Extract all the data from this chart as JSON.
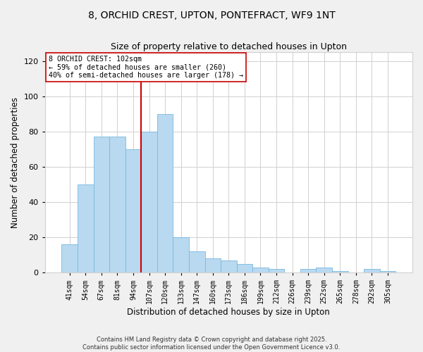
{
  "title": "8, ORCHID CREST, UPTON, PONTEFRACT, WF9 1NT",
  "subtitle": "Size of property relative to detached houses in Upton",
  "xlabel": "Distribution of detached houses by size in Upton",
  "ylabel": "Number of detached properties",
  "categories": [
    "41sqm",
    "54sqm",
    "67sqm",
    "81sqm",
    "94sqm",
    "107sqm",
    "120sqm",
    "133sqm",
    "147sqm",
    "160sqm",
    "173sqm",
    "186sqm",
    "199sqm",
    "212sqm",
    "226sqm",
    "239sqm",
    "252sqm",
    "265sqm",
    "278sqm",
    "292sqm",
    "305sqm"
  ],
  "values": [
    16,
    50,
    77,
    77,
    70,
    80,
    90,
    20,
    12,
    8,
    7,
    5,
    3,
    2,
    0,
    2,
    3,
    1,
    0,
    2,
    1
  ],
  "bar_color": "#b8d9f0",
  "bar_edge_color": "#7ab8e0",
  "vline_color": "#cc0000",
  "annotation_title": "8 ORCHID CREST: 102sqm",
  "annotation_line1": "← 59% of detached houses are smaller (260)",
  "annotation_line2": "40% of semi-detached houses are larger (178) →",
  "annotation_box_color": "#ffffff",
  "annotation_box_edge": "#cc0000",
  "ylim": [
    0,
    125
  ],
  "yticks": [
    0,
    20,
    40,
    60,
    80,
    100,
    120
  ],
  "footer1": "Contains HM Land Registry data © Crown copyright and database right 2025.",
  "footer2": "Contains public sector information licensed under the Open Government Licence v3.0.",
  "background_color": "#f0f0f0",
  "plot_background_color": "#ffffff",
  "grid_color": "#d0d0d0",
  "title_fontsize": 10,
  "subtitle_fontsize": 9
}
